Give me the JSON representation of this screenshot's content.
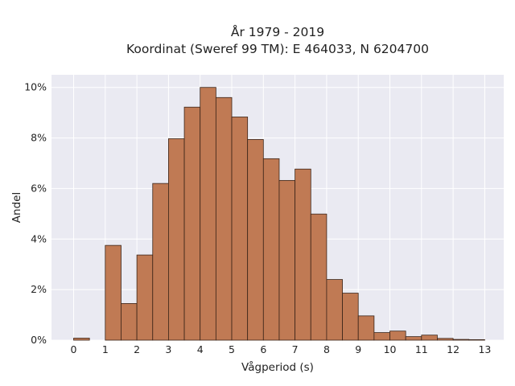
{
  "chart_data": {
    "type": "bar",
    "title_line1": "År 1979 - 2019",
    "title_line2": "Koordinat (Sweref 99 TM): E 464033, N 6204700",
    "xlabel": "Vågperiod (s)",
    "ylabel": "Andel",
    "bin_width": 0.5,
    "bins_start": [
      0,
      1,
      1.5,
      2,
      2.5,
      3,
      3.5,
      4,
      4.5,
      5,
      5.5,
      6,
      6.5,
      7,
      7.5,
      8,
      8.5,
      9,
      9.5,
      10,
      10.5,
      11,
      11.5,
      12,
      12.5
    ],
    "values": [
      0.08,
      3.75,
      1.45,
      3.37,
      6.2,
      7.97,
      9.22,
      10.0,
      9.6,
      8.83,
      7.94,
      7.18,
      6.32,
      6.77,
      4.99,
      2.4,
      1.86,
      0.96,
      0.3,
      0.36,
      0.14,
      0.2,
      0.07,
      0.03,
      0.02
    ],
    "xticks": [
      "0",
      "1",
      "2",
      "3",
      "4",
      "5",
      "6",
      "7",
      "8",
      "9",
      "10",
      "11",
      "12",
      "13"
    ],
    "yticks": [
      "0%",
      "2%",
      "4%",
      "6%",
      "8%",
      "10%"
    ],
    "xlim": [
      -0.7,
      13.6
    ],
    "ylim": [
      0,
      10.5
    ],
    "grid": true,
    "colors": {
      "bar": "#c07a54",
      "edge": "#3a2418",
      "plot_bg": "#eaeaf2",
      "grid": "#ffffff"
    }
  }
}
